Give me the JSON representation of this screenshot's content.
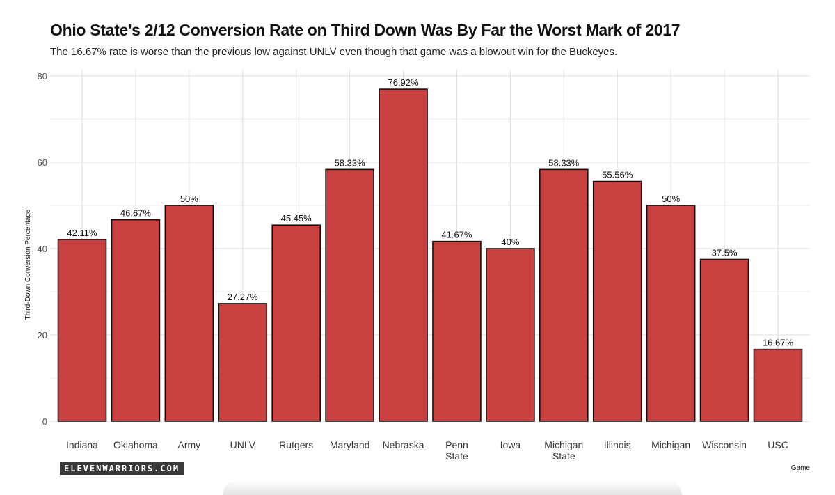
{
  "chart_data": {
    "type": "bar",
    "title": "Ohio State's 2/12 Conversion Rate on Third Down Was By Far the Worst Mark of 2017",
    "subtitle": "The 16.67% rate is worse than the previous low against UNLV even though that game was a blowout win for the Buckeyes.",
    "xlabel": "Game",
    "ylabel": "Third-Down Conversion Percentage",
    "ylim": [
      0,
      80
    ],
    "yticks": [
      0,
      20,
      40,
      60,
      80
    ],
    "grid": true,
    "categories": [
      [
        "Indiana"
      ],
      [
        "Oklahoma"
      ],
      [
        "Army"
      ],
      [
        "UNLV"
      ],
      [
        "Rutgers"
      ],
      [
        "Maryland"
      ],
      [
        "Nebraska"
      ],
      [
        "Penn",
        "State"
      ],
      [
        "Iowa"
      ],
      [
        "Michigan",
        "State"
      ],
      [
        "Illinois"
      ],
      [
        "Michigan"
      ],
      [
        "Wisconsin"
      ],
      [
        "USC"
      ]
    ],
    "values": [
      42.11,
      46.67,
      50,
      27.27,
      45.45,
      58.33,
      76.92,
      41.67,
      40,
      58.33,
      55.56,
      50,
      37.5,
      16.67
    ],
    "data_labels": [
      "42.11%",
      "46.67%",
      "50%",
      "27.27%",
      "45.45%",
      "58.33%",
      "76.92%",
      "41.67%",
      "40%",
      "58.33%",
      "55.56%",
      "50%",
      "37.5%",
      "16.67%"
    ],
    "bar_color": "#c8403f"
  },
  "brand": "ELEVENWARRIORS.COM"
}
